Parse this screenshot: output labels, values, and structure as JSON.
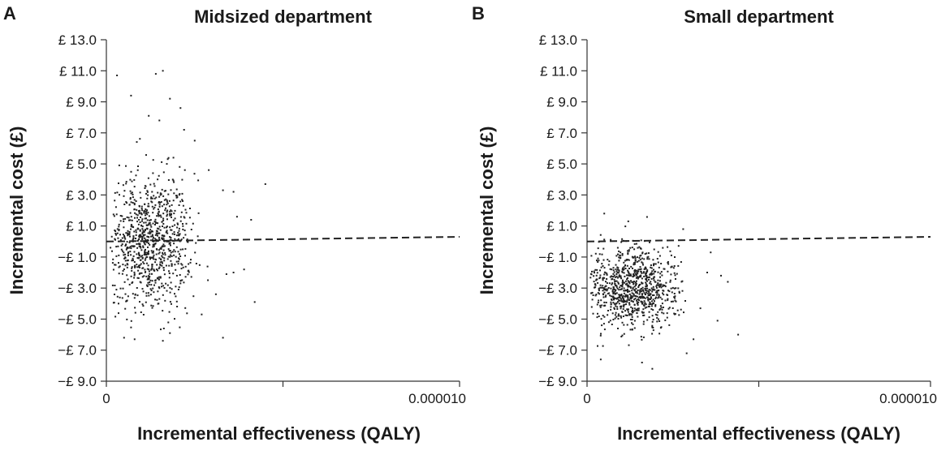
{
  "chart_data": [
    {
      "type": "scatter",
      "panel_label": "A",
      "title": "Midsized department",
      "xlabel": "Incremental effectiveness (QALY)",
      "ylabel": "Incremental cost (£)",
      "xlim": [
        0,
        1e-05
      ],
      "ylim": [
        -9,
        13
      ],
      "x_tick_values": [
        0,
        5e-06,
        1e-05
      ],
      "x_tick_labels": [
        "0",
        "",
        "0.000010"
      ],
      "y_tick_values": [
        13,
        11,
        9,
        7,
        5,
        3,
        1,
        -1,
        -3,
        -5,
        -7,
        -9
      ],
      "y_tick_labels": [
        "£ 13.0",
        "£ 11.0",
        "£ 9.0",
        "£ 7.0",
        "£ 5.0",
        "£ 3.0",
        "£ 1.0",
        "−£ 1.0",
        "−£ 3.0",
        "−£ 5.0",
        "−£ 7.0",
        "−£ 9.0"
      ],
      "threshold_line": {
        "style": "dashed",
        "from": [
          0,
          0.0
        ],
        "to": [
          1e-05,
          0.3
        ]
      },
      "cloud": {
        "n_points": 900,
        "x_mean": 1.2e-06,
        "x_sd": 6e-07,
        "y_mean": 0.0,
        "y_sd": 2.2,
        "y_min": -6.5,
        "y_max": 11.0
      },
      "outliers": [
        [
          3e-07,
          10.7
        ],
        [
          1.4e-06,
          10.8
        ],
        [
          1.6e-06,
          11.0
        ],
        [
          7e-07,
          9.4
        ],
        [
          1.8e-06,
          9.2
        ],
        [
          2.1e-06,
          8.6
        ],
        [
          1.2e-06,
          8.1
        ],
        [
          1.5e-06,
          7.8
        ],
        [
          2.2e-06,
          7.2
        ],
        [
          2.5e-06,
          6.5
        ],
        [
          2.9e-06,
          4.6
        ],
        [
          3.3e-06,
          3.3
        ],
        [
          3.6e-06,
          3.2
        ],
        [
          4.5e-06,
          3.7
        ],
        [
          3.7e-06,
          1.6
        ],
        [
          4.1e-06,
          1.4
        ],
        [
          3.4e-06,
          -2.1
        ],
        [
          3.6e-06,
          -2.0
        ],
        [
          3.9e-06,
          -1.8
        ],
        [
          4.2e-06,
          -3.9
        ],
        [
          3.1e-06,
          -3.4
        ],
        [
          2.7e-06,
          -4.7
        ],
        [
          3.3e-06,
          -6.2
        ],
        [
          5e-07,
          -6.2
        ],
        [
          8e-07,
          -6.3
        ],
        [
          1.6e-06,
          -6.4
        ],
        [
          1.8e-06,
          -5.9
        ]
      ]
    },
    {
      "type": "scatter",
      "panel_label": "B",
      "title": "Small department",
      "xlabel": "Incremental effectiveness (QALY)",
      "ylabel": "Incremental cost (£)",
      "xlim": [
        0,
        1e-05
      ],
      "ylim": [
        -9,
        13
      ],
      "x_tick_values": [
        0,
        5e-06,
        1e-05
      ],
      "x_tick_labels": [
        "0",
        "",
        "0.000010"
      ],
      "y_tick_values": [
        13,
        11,
        9,
        7,
        5,
        3,
        1,
        -1,
        -3,
        -5,
        -7,
        -9
      ],
      "y_tick_labels": [
        "£ 13.0",
        "£ 11.0",
        "£ 9.0",
        "£ 7.0",
        "£ 5.0",
        "£ 3.0",
        "£ 1.0",
        "−£ 1.0",
        "−£ 3.0",
        "−£ 5.0",
        "−£ 7.0",
        "−£ 9.0"
      ],
      "threshold_line": {
        "style": "dashed",
        "from": [
          0,
          0.0
        ],
        "to": [
          1e-05,
          0.3
        ]
      },
      "cloud": {
        "n_points": 900,
        "x_mean": 1.3e-06,
        "x_sd": 7e-07,
        "y_mean": -3.0,
        "y_sd": 1.3,
        "y_min": -8.2,
        "y_max": 1.8
      },
      "outliers": [
        [
          5e-07,
          1.8
        ],
        [
          1.2e-06,
          1.3
        ],
        [
          2.8e-06,
          0.8
        ],
        [
          3.6e-06,
          -0.7
        ],
        [
          3.9e-06,
          -2.2
        ],
        [
          4.1e-06,
          -2.6
        ],
        [
          3.5e-06,
          -2.0
        ],
        [
          3.3e-06,
          -4.3
        ],
        [
          3.8e-06,
          -5.1
        ],
        [
          4.4e-06,
          -6.0
        ],
        [
          3.1e-06,
          -6.3
        ],
        [
          2.9e-06,
          -7.2
        ],
        [
          4e-07,
          -7.6
        ],
        [
          1.9e-06,
          -8.2
        ],
        [
          1.6e-06,
          -7.8
        ]
      ]
    }
  ]
}
